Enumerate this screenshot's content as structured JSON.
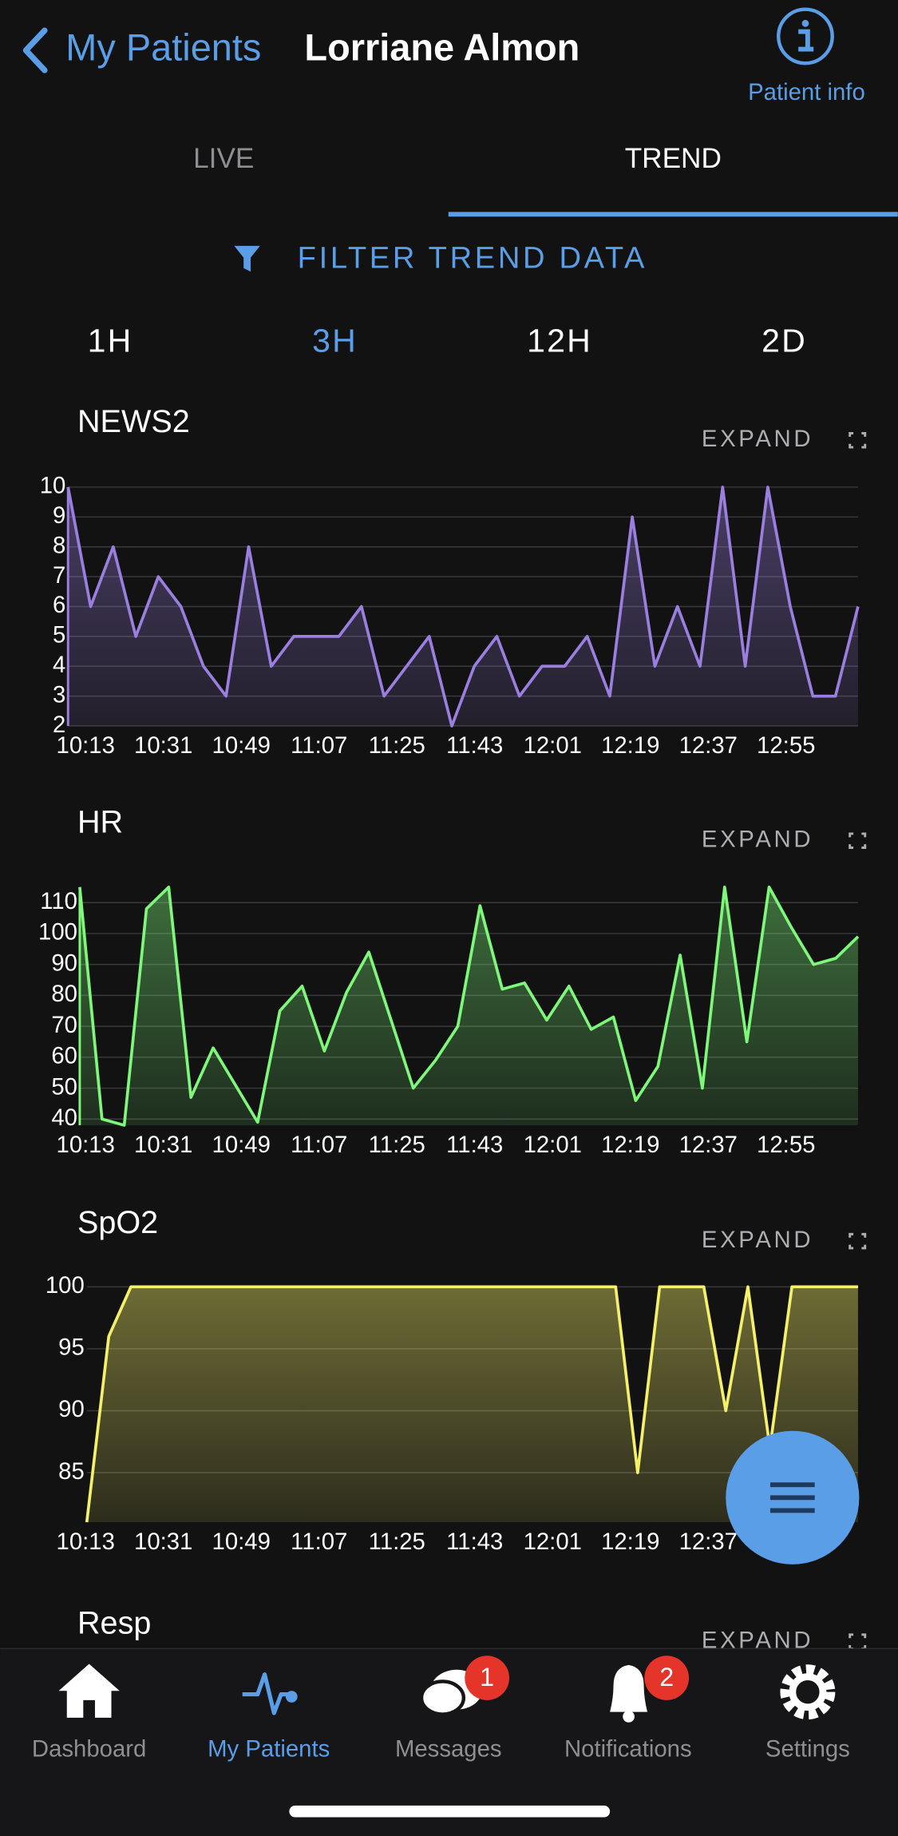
{
  "header": {
    "back": "My Patients",
    "title": "Lorriane Almon",
    "info": "Patient info"
  },
  "tabs": [
    "LIVE",
    "TREND"
  ],
  "filter": "FILTER TREND DATA",
  "ranges": [
    "1H",
    "3H",
    "12H",
    "2D"
  ],
  "expand": "EXPAND",
  "x_labels": [
    "10:13",
    "10:31",
    "10:49",
    "11:07",
    "11:25",
    "11:43",
    "12:01",
    "12:19",
    "12:37",
    "12:55"
  ],
  "charts": [
    {
      "type": "line",
      "title": "NEWS2",
      "color": "#9b7fe0",
      "ylim": [
        2,
        10
      ],
      "yticks": [
        2,
        3,
        4,
        5,
        6,
        7,
        8,
        9,
        10
      ],
      "grid": true,
      "values": [
        10,
        6,
        8,
        5,
        7,
        6,
        4,
        3,
        8,
        4,
        5,
        5,
        5,
        6,
        3,
        4,
        5,
        2,
        4,
        5,
        3,
        4,
        4,
        5,
        3,
        9,
        4,
        6,
        4,
        10,
        4,
        10,
        6,
        3,
        3,
        6
      ]
    },
    {
      "type": "line",
      "title": "HR",
      "color": "#7ef77a",
      "ylim": [
        38,
        116
      ],
      "yticks": [
        40,
        50,
        60,
        70,
        80,
        90,
        100,
        110
      ],
      "grid": true,
      "values": [
        115,
        40,
        38,
        108,
        115,
        47,
        63,
        51,
        39,
        75,
        83,
        62,
        81,
        94,
        72,
        50,
        59,
        70,
        109,
        82,
        84,
        72,
        83,
        69,
        73,
        46,
        57,
        93,
        50,
        115,
        65,
        115,
        102,
        90,
        92,
        99
      ]
    },
    {
      "type": "line",
      "title": "SpO2",
      "color": "#f5f06a",
      "ylim": [
        81,
        100
      ],
      "yticks": [
        85,
        90,
        95,
        100
      ],
      "grid": true,
      "values": [
        81,
        96,
        100,
        100,
        100,
        100,
        100,
        100,
        100,
        100,
        100,
        100,
        100,
        100,
        100,
        100,
        100,
        100,
        100,
        100,
        100,
        100,
        100,
        100,
        100,
        85,
        100,
        100,
        100,
        90,
        100,
        87,
        100,
        100,
        100,
        100
      ]
    },
    {
      "type": "line",
      "title": "Resp"
    }
  ],
  "nav": [
    {
      "label": "Dashboard"
    },
    {
      "label": "My Patients"
    },
    {
      "label": "Messages",
      "badge": "1"
    },
    {
      "label": "Notifications",
      "badge": "2"
    },
    {
      "label": "Settings"
    }
  ]
}
